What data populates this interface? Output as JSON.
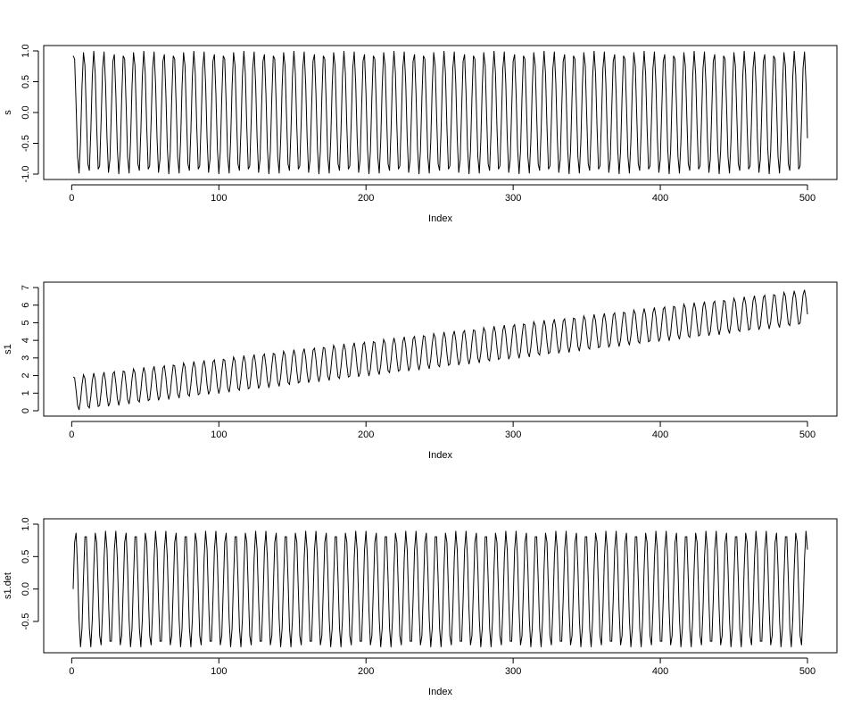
{
  "chart_data": [
    {
      "type": "line",
      "xlabel": "Index",
      "ylabel": "s",
      "x_ticks": [
        0,
        100,
        200,
        300,
        400,
        500
      ],
      "y_ticks": [
        -1.0,
        -0.5,
        0.0,
        0.5,
        1.0
      ],
      "x_tick_labels": [
        "0",
        "100",
        "200",
        "300",
        "400",
        "500"
      ],
      "y_tick_labels": [
        "-1.0",
        "-0.5",
        "0.0",
        "0.5",
        "1.0"
      ],
      "xlim": [
        1,
        500
      ],
      "ylim": [
        -1.0,
        1.0
      ],
      "series": [
        {
          "model": "sin",
          "period": 6.8,
          "amplitude": 1.0,
          "trend_start": 0.0,
          "trend_end": 0.0,
          "phase": 1.17,
          "n": 500
        }
      ]
    },
    {
      "type": "line",
      "xlabel": "Index",
      "ylabel": "s1",
      "x_ticks": [
        0,
        100,
        200,
        300,
        400,
        500
      ],
      "y_ticks": [
        0,
        1,
        2,
        3,
        4,
        5,
        6,
        7
      ],
      "x_tick_labels": [
        "0",
        "100",
        "200",
        "300",
        "400",
        "500"
      ],
      "y_tick_labels": [
        "0",
        "1",
        "2",
        "3",
        "4",
        "5",
        "6",
        "7"
      ],
      "xlim": [
        1,
        500
      ],
      "ylim": [
        0,
        7
      ],
      "series": [
        {
          "model": "sin_plus_linear_trend",
          "period": 6.8,
          "amplitude": 1.0,
          "trend_start": 1.0,
          "trend_end": 5.9,
          "phase": 1.17,
          "n": 500
        }
      ]
    },
    {
      "type": "line",
      "xlabel": "Index",
      "ylabel": "s1.det",
      "x_ticks": [
        0,
        100,
        200,
        300,
        400,
        500
      ],
      "y_ticks": [
        -0.5,
        0.0,
        0.5,
        1.0
      ],
      "x_tick_labels": [
        "0",
        "100",
        "200",
        "300",
        "400",
        "500"
      ],
      "y_tick_labels": [
        "-0.5",
        "0.0",
        "0.5",
        "1.0"
      ],
      "xlim": [
        1,
        500
      ],
      "ylim": [
        -0.9,
        1.0
      ],
      "series": [
        {
          "model": "sin",
          "period": 6.8,
          "amplitude": 0.9,
          "trend_start": 0.0,
          "trend_end": 0.0,
          "phase": 0.0,
          "n": 500
        }
      ]
    }
  ]
}
